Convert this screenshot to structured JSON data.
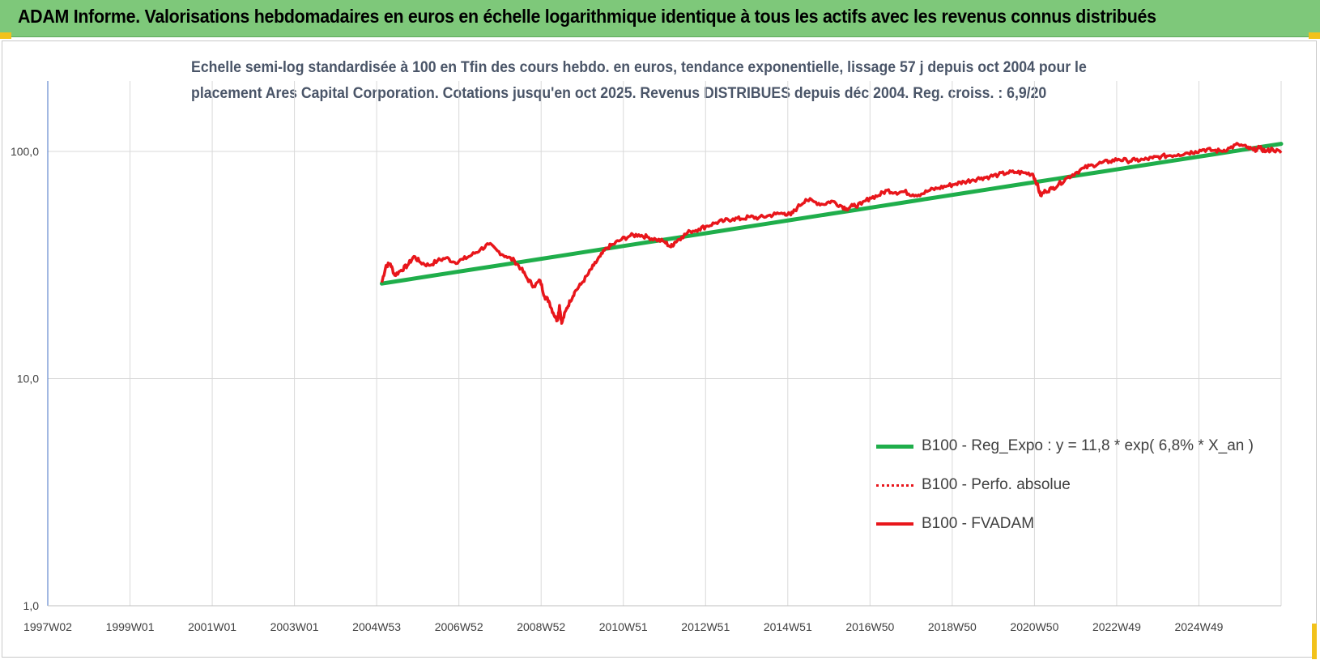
{
  "header": {
    "title": "ADAM Informe. Valorisations hebdomadaires en euros en échelle logarithmique identique à tous les actifs avec les revenus connus distribués"
  },
  "colors": {
    "banner": "#7ec87a",
    "regression": "#1fae4b",
    "fvadam": "#e8161b",
    "perfo": "#e8161b",
    "grid": "#d9d9d9",
    "accent": "#f2c21b"
  },
  "chart_data": {
    "type": "line",
    "title_lines": [
      "Echelle semi-log standardisée à 100 en Tfin des cours hebdo. en euros, tendance exponentielle, lissage 57 j depuis oct 2004 pour le",
      "placement Ares Capital Corporation. Cotations jusqu'en oct 2025. Revenus DISTRIBUES depuis déc 2004. Reg. croiss. : 6,9/20"
    ],
    "y_scale": "log",
    "ylim": [
      1,
      200
    ],
    "xlim": [
      1997.0,
      2025.8
    ],
    "y_ticks": [
      "1,0",
      "10,0",
      "100,0"
    ],
    "x_ticks": [
      "1997W02",
      "1999W01",
      "2001W01",
      "2003W01",
      "2004W53",
      "2006W52",
      "2008W52",
      "2010W51",
      "2012W51",
      "2014W51",
      "2016W50",
      "2018W50",
      "2020W50",
      "2022W49",
      "2024W49"
    ],
    "grid": true,
    "legend_position": "bottom-right",
    "series": [
      {
        "name": "B100 - Reg_Expo : y = 11,8 * exp( 6,8% *  X_an )",
        "style": "solid-thick",
        "x": [
          2004.8,
          2025.8
        ],
        "y": [
          26.2,
          108
        ]
      },
      {
        "name": "B100 - Perfo. absolue",
        "style": "dotted",
        "x": [],
        "y": []
      },
      {
        "name": "B100 - FVADAM",
        "style": "solid",
        "x": [
          2004.8,
          2004.9,
          2005.0,
          2005.1,
          2005.25,
          2005.4,
          2005.55,
          2005.7,
          2005.9,
          2006.1,
          2006.3,
          2006.5,
          2006.7,
          2006.9,
          2007.1,
          2007.3,
          2007.5,
          2007.7,
          2007.9,
          2008.05,
          2008.2,
          2008.35,
          2008.5,
          2008.6,
          2008.7,
          2008.8,
          2008.9,
          2008.95,
          2009.0,
          2009.1,
          2009.2,
          2009.3,
          2009.45,
          2009.6,
          2009.75,
          2009.9,
          2010.05,
          2010.2,
          2010.4,
          2010.6,
          2010.8,
          2011.0,
          2011.2,
          2011.4,
          2011.55,
          2011.65,
          2011.8,
          2012.0,
          2012.2,
          2012.4,
          2012.6,
          2012.8,
          2013.0,
          2013.2,
          2013.4,
          2013.6,
          2013.8,
          2014.0,
          2014.2,
          2014.35,
          2014.5,
          2014.7,
          2014.9,
          2015.1,
          2015.3,
          2015.5,
          2015.65,
          2015.8,
          2016.0,
          2016.2,
          2016.4,
          2016.6,
          2016.8,
          2017.0,
          2017.2,
          2017.4,
          2017.6,
          2017.8,
          2018.0,
          2018.2,
          2018.4,
          2018.6,
          2018.8,
          2019.0,
          2019.2,
          2019.4,
          2019.6,
          2019.8,
          2020.0,
          2020.1,
          2020.18,
          2020.3,
          2020.45,
          2020.6,
          2020.8,
          2021.0,
          2021.2,
          2021.4,
          2021.6,
          2021.8,
          2022.0,
          2022.2,
          2022.4,
          2022.6,
          2022.8,
          2023.0,
          2023.2,
          2023.4,
          2023.6,
          2023.8,
          2024.0,
          2024.2,
          2024.4,
          2024.6,
          2024.8,
          2025.0,
          2025.15,
          2025.3,
          2025.45,
          2025.6,
          2025.8
        ],
        "y": [
          26.5,
          31.5,
          32.0,
          28.5,
          30.0,
          31.5,
          34.5,
          32.5,
          31.5,
          33.0,
          34.0,
          32.5,
          33.5,
          35.0,
          37.0,
          39.0,
          36.5,
          34.5,
          33.0,
          30.5,
          27.5,
          25.5,
          27.0,
          23.0,
          22.0,
          19.5,
          18.0,
          21.0,
          17.5,
          20.0,
          22.0,
          24.0,
          26.0,
          28.5,
          31.5,
          34.5,
          37.5,
          39.0,
          41.0,
          42.5,
          43.0,
          42.0,
          41.0,
          40.0,
          38.0,
          40.0,
          42.0,
          44.5,
          45.5,
          47.0,
          48.5,
          49.5,
          50.5,
          50.5,
          51.5,
          51.0,
          52.0,
          53.0,
          53.5,
          52.5,
          56.5,
          61.5,
          60.0,
          58.5,
          60.5,
          58.0,
          56.0,
          57.5,
          58.5,
          62.5,
          64.0,
          67.5,
          66.0,
          66.5,
          64.5,
          65.0,
          67.5,
          69.0,
          70.5,
          72.0,
          73.5,
          75.0,
          76.5,
          77.5,
          79.0,
          80.5,
          81.0,
          80.5,
          79.5,
          72.0,
          64.0,
          67.0,
          68.5,
          71.5,
          76.5,
          80.5,
          84.5,
          87.0,
          89.0,
          90.5,
          92.5,
          91.0,
          91.5,
          92.0,
          93.5,
          95.0,
          96.0,
          97.0,
          98.5,
          100.0,
          102.0,
          101.0,
          100.5,
          103.5,
          107.5,
          104.0,
          101.5,
          103.5,
          100.0,
          102.5,
          98.5
        ]
      }
    ]
  }
}
